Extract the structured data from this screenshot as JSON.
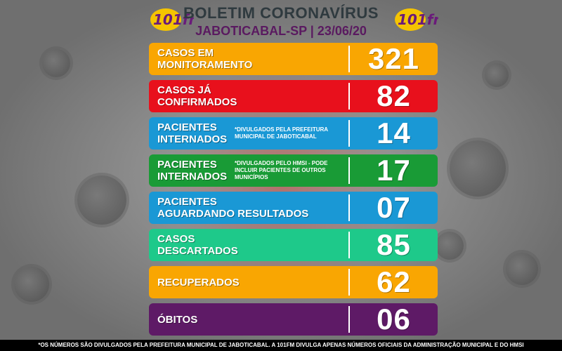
{
  "header": {
    "title": "BOLETIM CORONAVÍRUS",
    "subtitle": "JABOTICABAL-SP | 23/06/20",
    "logo_text": "101fm"
  },
  "rows": [
    {
      "label_line1": "CASOS EM",
      "label_line2": "MONITORAMENTO",
      "note": "",
      "value": "321",
      "color": "#f9a602"
    },
    {
      "label_line1": "CASOS JÁ",
      "label_line2": "CONFIRMADOS",
      "note": "",
      "value": "82",
      "color": "#e8101c"
    },
    {
      "label_line1": "PACIENTES",
      "label_line2": "INTERNADOS",
      "note": "*DIVULGADOS PELA PREFEITURA MUNICIPAL DE JABOTICABAL",
      "value": "14",
      "color": "#1a98d5"
    },
    {
      "label_line1": "PACIENTES",
      "label_line2": "INTERNADOS",
      "note": "*DIVULGADOS PELO HMSI - PODE INCLUIR PACIENTES DE OUTROS MUNICÍPIOS",
      "value": "17",
      "color": "#199b36"
    },
    {
      "label_line1": "PACIENTES",
      "label_line2": "AGUARDANDO RESULTADOS",
      "note": "",
      "value": "07",
      "color": "#1a98d5"
    },
    {
      "label_line1": "CASOS",
      "label_line2": "DESCARTADOS",
      "note": "",
      "value": "85",
      "color": "#1ec98a"
    },
    {
      "label_line1": "RECUPERADOS",
      "label_line2": "",
      "note": "",
      "value": "62",
      "color": "#f9a602"
    },
    {
      "label_line1": "ÓBITOS",
      "label_line2": "",
      "note": "",
      "value": "06",
      "color": "#5e1a66"
    }
  ],
  "footer": {
    "text": "*OS NÚMEROS SÃO DIVULGADOS PELA PREFEITURA MUNICIPAL DE JABOTICABAL. A 101FM DIVULGA APENAS NÚMEROS OFICIAIS DA ADMINISTRAÇÃO MUNICIPAL E DO HMSI"
  }
}
